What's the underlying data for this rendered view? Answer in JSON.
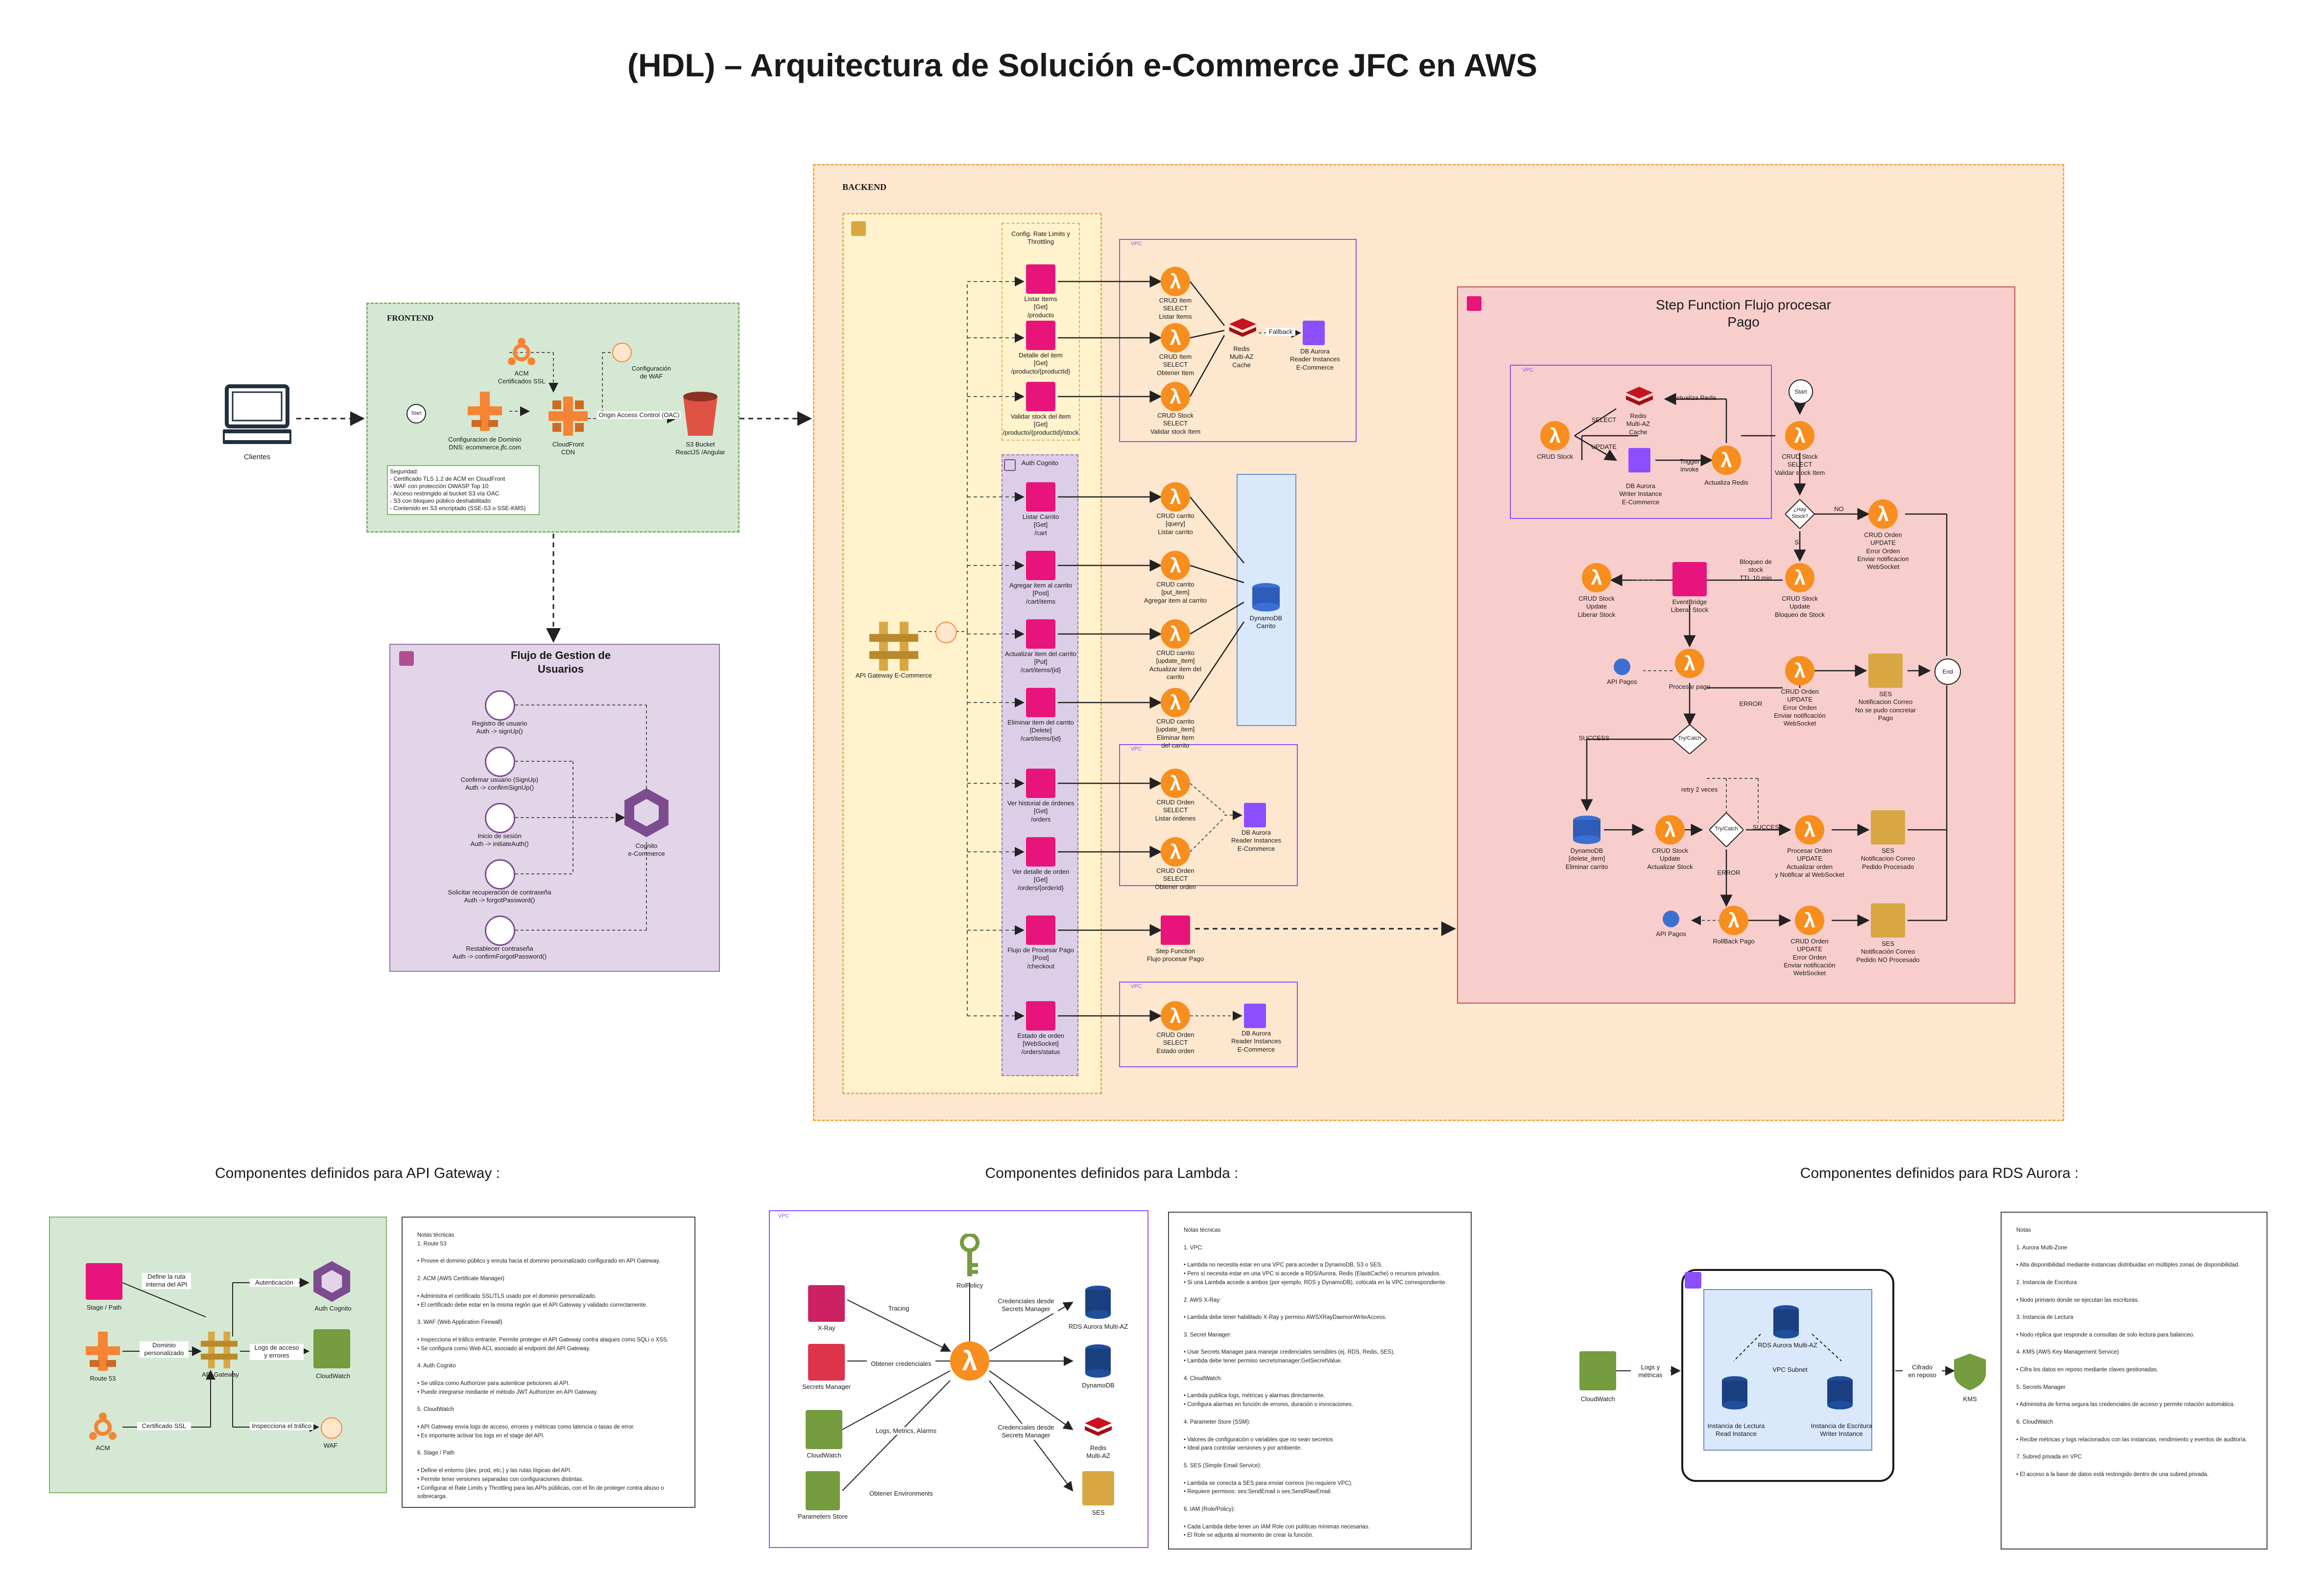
{
  "title": "(HDL) – Arquitectura de Solución e-Commerce JFC en AWS",
  "colors": {
    "frontend_bg": "#d5e8d4",
    "backend_bg": "#fde7cf",
    "apigw_bg": "#fff2cc",
    "cognito_bg": "#e1d5e7",
    "sfn_bg": "#f8cecc",
    "lambda": "#f78e1e",
    "apigw_icon": "#e7157b",
    "dynamo": "#3b6fd4",
    "ses": "#d9a741",
    "cognito": "#7d4b8f"
  },
  "clients": {
    "label": "Clientes"
  },
  "frontend": {
    "title": "FRONTEND",
    "acm": "ACM\nCertificados SSL",
    "waf": "Configuración\nde WAF",
    "route53": "Configuracion de Dominio\nDNS: ecommerce.jfc.com",
    "cloudfront": "CloudFront\nCDN",
    "oac": "Origin Access Control (OAC)",
    "s3": "S3 Bucket\nReactJS /Angular",
    "start": "Start",
    "security": "Seguridad:\n- Certificado TLS 1.2 de ACM en CloudFront\n- WAF con protección OWASP Top 10\n- Acceso restringido al bucket S3 vía OAC\n- S3 con bloqueo público deshabilitado\n- Contenido en S3 encriptado (SSE-S3 o SSE-KMS)"
  },
  "users_flow": {
    "title": "Flujo de Gestion de\nUsuarios",
    "items": [
      "Registro de usuario\nAuth -> signUp()",
      "Confirmar usuario (SignUp)\nAuth -> confirmSignUp()",
      "Inicio de sesión\nAuth -> initiateAuth()",
      "Solicitar recuperación de contraseña\nAuth -> forgotPassword()",
      "Restablecer contraseña\nAuth -> confirmForgotPassword()"
    ],
    "cognito": "Cognito\ne-Commerce"
  },
  "backend": {
    "title": "BACKEND",
    "apigw": "API Gateway E-Commerce",
    "throttle": "Config. Rate Limits y\nThrottling",
    "auth": "Auth Cognito",
    "endpoints": [
      "Listar Items\n[Get]\n/producto",
      "Detalle del item\n[Get]\n/producto/{productId}",
      "Validar stock del item\n[Get]\n/producto/{productId}/stock",
      "Listar Carrito\n[Get]\n/cart",
      "Agregar item al carrito\n[Post]\n/cart/items",
      "Actualizar item del carrito\n[Put]\n/cart/items/{id}",
      "Eliminar item del carrito\n[Delete]\n/cart/items/{id}",
      "Ver historial de órdenes\n[Get]\n/orders",
      "Ver detalle de orden\n[Get]\n/orders/{orderId}",
      "Flujo de Procesar Pago\n[Post]\n/checkout",
      "Estado de orden\n[WebSocket]\n/orders/status"
    ],
    "lambdas": [
      "CRUD Item\nSELECT\nListar Items",
      "CRUD Item\nSELECT\nObtener Item",
      "CRUD Stock\nSELECT\nValidar stock Item",
      "CRUD carrito\n[query]\nListar carrito",
      "CRUD carrito\n[put_item]\nAgregar item al carrito",
      "CRUD carrito\n[update_item]\nActualizar item del carrito",
      "CRUD carrito\n[update_item]\nEliminar Item\ndel carrito",
      "CRUD Orden\nSELECT\nListar órdenes",
      "CRUD Orden\nSELECT\nObtener orden",
      "CRUD Orden\nSELECT\nEstado orden"
    ],
    "redis": "Redis\nMulti-AZ\nCache",
    "fallback": "Fallback",
    "aurora_reader": "DB Aurora\nReader Instances\nE-Commerce",
    "dynamo": "DynamoDB\nCarrito",
    "sfn_node": "Step Function\nFlujo procesar Pago",
    "vpc": "VPC"
  },
  "stepfn": {
    "title": "Step Function Flujo procesar\nPago",
    "start": "Start",
    "end": "End",
    "crud_stock_sel": "CRUD Stock\nSELECT\nValidar stock Item",
    "crud_stock": "CRUD Stock",
    "redis": "Redis\nMulti-AZ\nCache",
    "actualiza_redis_lbl": "Actualiza Redis",
    "select": "SELECT",
    "update": "UPDATE",
    "aurora_writer": "DB Aurora\nWriter Instance\nE-Commerce",
    "trigger": "Trigger\ninvoke",
    "actualiza_redis": "Actualiza Redis",
    "hay_stock": "¿Hay\nStock?",
    "no": "NO",
    "si": "Si",
    "orden_error": "CRUD Orden\nUPDATE\nError Orden\nEnviar notificacion WebSocket",
    "bloqueo": "Bloqueo de\nstock\nTTL 10 min",
    "stock_update": "CRUD Stock\nUpdate\nBloqueo de Stock",
    "stock_liberar": "CRUD Stock\nUpdate\nLiberar Stock",
    "eventbridge": "EventBridge\nLiberar Stock",
    "procesar_pago": "Procesar pago",
    "api_pagos": "API Pagos",
    "trycatch": "Try/Catch",
    "error": "ERROR",
    "success": "SUCCESS",
    "orden_update_err": "CRUD Orden\nUPDATE\nError Orden\nEnviar notificación WebSocket",
    "ses_err": "SES\nNotificacion Correo\nNo se pudo concretar Pago",
    "dynamo_del": "DynamoDB\n[delete_item]\nEliminar carrito",
    "retry": "retry 2 veces",
    "stock_actualizar": "CRUD Stock\nUpdate\nActualizar Stock",
    "procesar_orden": "Procesar Orden\nUPDATE\nActualizar orden\ny Notificar al WebSocket",
    "ses_ok": "SES\nNotificacion Correo\nPedido Procesado",
    "rollback": "RollBack Pago",
    "orden_error2": "CRUD Orden\nUPDATE\nError Orden\nEnviar notificación WebSocket",
    "ses_fail": "SES\nNotificación Correo\nPedido NO Procesado"
  },
  "sections": {
    "apigw": "Componentes definidos para API Gateway :",
    "lambda": "Componentes definidos para Lambda :",
    "aurora": "Componentes definidos para RDS Aurora :"
  },
  "apigw_components": {
    "stage": "Stage / Path",
    "route53": "Route 53",
    "acm": "ACM",
    "apigw": "API Gateway",
    "cognito": "Auth Cognito",
    "cloudwatch": "CloudWatch",
    "waf": "WAF",
    "e1": "Define la ruta\ninterna del API",
    "e2": "Dominio\npersonalizado",
    "e3": "Certificado SSL",
    "e4": "Autenticación",
    "e5": "Logs de acceso\ny errores",
    "e6": "Inspecciona el tráfico"
  },
  "apigw_notes": "Notas técnicas\n1. Route 53\n\n• Provee el dominio público y enruta hacia el dominio personalizado configurado en API Gateway.\n\n2. ACM (AWS Certificate Manager)\n\n• Administra el certificado SSL/TLS usado por el dominio personalizado.\n• El certificado debe estar en la misma región que el API Gateway y validado correctamente.\n\n3. WAF (Web Application Firewall)\n\n• Inspecciona el tráfico entrante. Permite proteger el API Gateway contra ataques como SQLi o XSS.\n• Se configura como Web ACL asociado al endpoint del API Gateway.\n\n4. Auth Cognito\n\n• Se utiliza como Authorizer para autenticar peticiones al API.\n• Puede integrarse mediante el método JWT Authorizer en API Gateway.\n\n5. CloudWatch\n\n• API Gateway envía logs de acceso, errores y métricas como latencia o tasas de error.\n• Es importante activar los logs en el stage del API.\n\n6. Stage / Path\n\n• Define el entorno (dev, prod, etc.) y las rutas lógicas del API.\n• Permite tener versiones separadas con configuraciones distintas.\n• Configurar el Rate Limits y Throttling para las APIs públicas, con el fin de proteger contra abuso o sobrecarga.",
  "lambda_components": {
    "vpc": "VPC",
    "xray": "X-Ray",
    "secrets": "Secrets Manager",
    "cloudwatch": "CloudWatch",
    "params": "Parameters Store",
    "role": "RolPolicy",
    "aurora": "RDS Aurora Multi-AZ",
    "dynamo": "DynamoDB",
    "redis": "Redis\nMulti-AZ",
    "ses": "SES",
    "e_tracing": "Tracing",
    "e_cred": "Obtener credenciales",
    "e_logs": "Logs, Metrics, Alarms",
    "e_env": "Obtener Environments",
    "e_cred_secret": "Credenciales desde\nSecrets Manager",
    "e_cred_secret2": "Credenciales desde\nSecrets Manager"
  },
  "lambda_notes": "Notas técnicas\n\n1. VPC:\n\n• Lambda no necesita estar en una VPC para acceder a DynamoDB, S3 o SES.\n• Pero sí necesita estar en una VPC si accede a RDS/Aurora, Redis (ElastiCache) o recursos privados.\n• Si una Lambda accede a ambos (por ejemplo, RDS y DynamoDB), colócala en la VPC correspondiente.\n\n2. AWS X-Ray:\n\n• Lambda debe tener habilitado X-Ray y permiso AWSXRayDaemonWriteAccess.\n\n3. Secret Manager:\n\n• Usar Secrets Manager para manejar credenciales sensibles (ej. RDS, Redis, SES).\n• Lambda debe tener permiso secretsmanager:GetSecretValue.\n\n4. CloudWatch:\n\n• Lambda publica logs, métricas y alarmas directamente.\n• Configura alarmas en función de errores, duración o invocaciones.\n\n4. Parameter Store (SSM):\n\n• Valores de configuración o variables que no sean secretos\n• Ideal para controlar versiones y por ambiente.\n\n5. SES (Simple Email Service):\n\n• Lambda se conecta a SES para enviar correos (no requiere VPC).\n• Requiere permisos: ses:SendEmail o ses:SendRawEmail.\n\n6. IAM (Role/Policy):\n\n• Cada Lambda debe tener un IAM Role con políticas mínimas necesarias.\n• El Role se adjunta al momento de crear la función.",
  "aurora_components": {
    "cloudwatch": "CloudWatch",
    "kms": "KMS",
    "rds": "RDS Aurora Multi-AZ",
    "vpc_subnet": "VPC Subnet",
    "reader": "Instancia de Lectura\nRead Instance",
    "writer": "Instancia de Escritura\nWriter Instance",
    "e_logs": "Logs y\nmétricas",
    "e_kms": "Cifrado\nen reposo"
  },
  "aurora_notes": "Notas\n\n1. Aurora Multi-Zone\n\n• Alta disponibilidad mediante instancias distribuidas en múltiples zonas de disponibilidad.\n\n2. Instancia de Escritura\n\n• Nodo primario donde se ejecutan las escrituras.\n\n3. Instancia de Lectura\n\n• Nodo réplica que responde a consultas de solo lectura para balanceo.\n\n4. KMS (AWS Key Management Service)\n\n• Cifra los datos en reposo mediante claves gestionadas.\n\n5. Secrets Manager\n\n• Administra de forma segura las credenciales de acceso y permite rotación automática.\n\n6. CloudWatch\n\n• Recibe métricas y logs relacionados con las instancias, rendimiento y eventos de auditoría.\n\n7. Subred privada en VPC\n\n• El acceso a la base de datos está restringido dentro de una subred privada."
}
